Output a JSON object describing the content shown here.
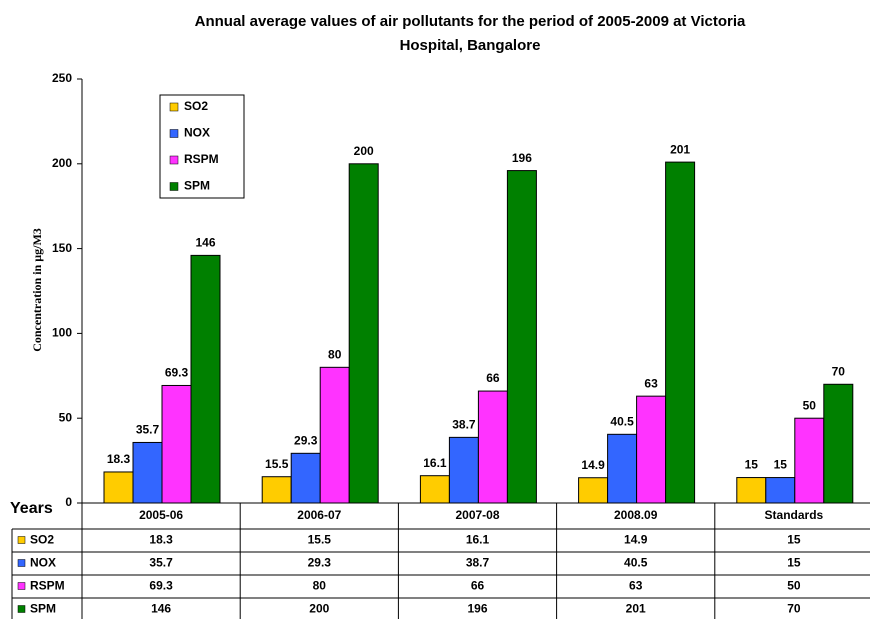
{
  "chart_data": {
    "type": "bar",
    "title": [
      "Annual average values of air pollutants  for the period of 2005-2009 at Victoria",
      "Hospital, Bangalore"
    ],
    "y_label": "Concentration in µg/M3",
    "table_header": "Years",
    "annotation": "c",
    "categories": [
      "2005-06",
      "2006-07",
      "2007-08",
      "2008.09",
      "Standards"
    ],
    "series": [
      {
        "name": "SO2",
        "color": "#ffcc00",
        "values": [
          18.3,
          15.5,
          16.1,
          14.9,
          15
        ]
      },
      {
        "name": "NOX",
        "color": "#3366ff",
        "values": [
          35.7,
          29.3,
          38.7,
          40.5,
          15
        ]
      },
      {
        "name": "RSPM",
        "color": "#ff33ff",
        "values": [
          69.3,
          80,
          66,
          63,
          50
        ]
      },
      {
        "name": "SPM",
        "color": "#008000",
        "values": [
          146,
          200,
          196,
          201,
          70
        ]
      }
    ],
    "ylim": [
      0,
      250
    ],
    "yticks": [
      0,
      50,
      100,
      150,
      200,
      250
    ]
  }
}
